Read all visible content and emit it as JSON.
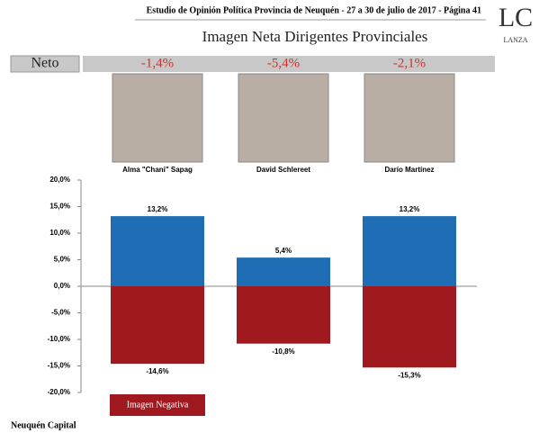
{
  "header": "Estudio de Opinión Política Provincia de Neuquén - 27 a 30 de julio de 2017 - Página 41",
  "logo": {
    "mark": "LC",
    "name": "LANZA"
  },
  "footer": "Neuquén Capital",
  "chart_data": {
    "type": "bar",
    "title": "Imagen Neta Dirigentes Provinciales",
    "neto_label": "Neto",
    "neto_values": [
      -1.4,
      -5.4,
      -2.1
    ],
    "neto_value_labels": [
      "-1,4%",
      "-5,4%",
      "-2,1%"
    ],
    "categories": [
      "Alma \"Chani\" Sapag",
      "David Schlereet",
      "Darío Martínez"
    ],
    "series": [
      {
        "color": "#1f6db5",
        "values": [
          13.2,
          5.4,
          13.2
        ],
        "value_labels": [
          "13,2%",
          "5,4%",
          "13,2%"
        ]
      },
      {
        "name": "Imagen Negativa",
        "color": "#a0191f",
        "values": [
          -14.6,
          -10.8,
          -15.3
        ],
        "value_labels": [
          "-14,6%",
          "-10,8%",
          "-15,3%"
        ]
      }
    ],
    "ylim": [
      -20,
      20
    ],
    "yticks": [
      {
        "value": -20,
        "label": "-20,0%"
      },
      {
        "value": -15,
        "label": "-15,0%"
      },
      {
        "value": -10,
        "label": "-10,0%"
      },
      {
        "value": -5,
        "label": "-5,0%"
      },
      {
        "value": 0,
        "label": "0,0%"
      },
      {
        "value": 5,
        "label": "5,0%"
      },
      {
        "value": 10,
        "label": "10,0%"
      },
      {
        "value": 15,
        "label": "15,0%"
      },
      {
        "value": 20,
        "label": "20,0%"
      }
    ],
    "grid": false
  }
}
